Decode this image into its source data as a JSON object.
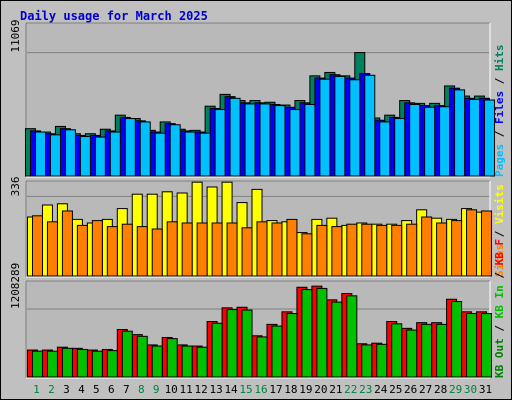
{
  "title": "Daily usage for March 2025",
  "chart_data": [
    {
      "type": "bar",
      "title": "Daily usage for March 2025",
      "categories": [
        "1",
        "2",
        "3",
        "4",
        "5",
        "6",
        "7",
        "8",
        "9",
        "10",
        "11",
        "12",
        "13",
        "14",
        "15",
        "16",
        "17",
        "18",
        "19",
        "20",
        "21",
        "22",
        "23",
        "24",
        "25",
        "26",
        "27",
        "28",
        "29",
        "30",
        "31"
      ],
      "weekend_days": [
        "1",
        "2",
        "8",
        "9",
        "15",
        "16",
        "22",
        "23",
        "29",
        "30"
      ],
      "y_tick_label": "11069",
      "ylim": [
        0,
        13700
      ],
      "series": [
        {
          "name": "Hits",
          "color": "#00805c",
          "values": [
            4300,
            4000,
            4500,
            3850,
            3850,
            4250,
            5500,
            5200,
            4150,
            4900,
            4250,
            4150,
            6300,
            7350,
            6800,
            6800,
            6650,
            6400,
            6800,
            9000,
            9300,
            9000,
            11069,
            5250,
            5500,
            6800,
            6550,
            6550,
            8100,
            7200,
            7200
          ]
        },
        {
          "name": "Files",
          "color": "#0000ff",
          "values": [
            4100,
            3850,
            4300,
            3700,
            3700,
            4100,
            5300,
            5000,
            4000,
            4750,
            4100,
            4000,
            6100,
            7150,
            6600,
            6600,
            6450,
            6200,
            6600,
            8800,
            9100,
            8800,
            9200,
            5050,
            5300,
            6600,
            6350,
            6350,
            7900,
            7000,
            7000
          ]
        },
        {
          "name": "Pages",
          "color": "#00c0ff",
          "values": [
            4000,
            3750,
            4200,
            3600,
            3550,
            4000,
            5200,
            4900,
            3900,
            4650,
            4000,
            3900,
            6000,
            7000,
            6500,
            6500,
            6350,
            6000,
            6450,
            8700,
            8950,
            8650,
            9050,
            4900,
            5200,
            6450,
            6200,
            6250,
            7750,
            6900,
            6850
          ]
        }
      ]
    },
    {
      "type": "bar",
      "categories": [
        "1",
        "2",
        "3",
        "4",
        "5",
        "6",
        "7",
        "8",
        "9",
        "10",
        "11",
        "12",
        "13",
        "14",
        "15",
        "16",
        "17",
        "18",
        "19",
        "20",
        "21",
        "22",
        "23",
        "24",
        "25",
        "26",
        "27",
        "28",
        "29",
        "30",
        "31"
      ],
      "y_tick_label": "336",
      "ylim": [
        0,
        400
      ],
      "series": [
        {
          "name": "Visits",
          "color": "#ffff00",
          "values": [
            250,
            300,
            305,
            240,
            225,
            240,
            285,
            345,
            345,
            355,
            350,
            395,
            375,
            395,
            310,
            365,
            235,
            230,
            185,
            240,
            245,
            215,
            225,
            220,
            220,
            235,
            280,
            245,
            240,
            285,
            270
          ]
        },
        {
          "name": "Sites",
          "color": "#ff8000",
          "values": [
            255,
            230,
            275,
            215,
            235,
            210,
            220,
            210,
            200,
            230,
            225,
            225,
            225,
            225,
            205,
            230,
            225,
            240,
            180,
            215,
            210,
            220,
            220,
            215,
            215,
            220,
            250,
            225,
            235,
            280,
            275
          ]
        }
      ]
    },
    {
      "type": "bar",
      "categories": [
        "1",
        "2",
        "3",
        "4",
        "5",
        "6",
        "7",
        "8",
        "9",
        "10",
        "11",
        "12",
        "13",
        "14",
        "15",
        "16",
        "17",
        "18",
        "19",
        "20",
        "21",
        "22",
        "23",
        "24",
        "25",
        "26",
        "27",
        "28",
        "29",
        "30",
        "31"
      ],
      "y_tick_label": "1208289",
      "ylim": [
        0,
        1700000
      ],
      "series": [
        {
          "name": "KB F",
          "color": "#ff0000",
          "values": [
            490000,
            490000,
            540000,
            520000,
            490000,
            500000,
            850000,
            760000,
            580000,
            710000,
            580000,
            560000,
            990000,
            1230000,
            1240000,
            740000,
            940000,
            1160000,
            1590000,
            1610000,
            1370000,
            1480000,
            600000,
            610000,
            990000,
            870000,
            970000,
            970000,
            1380000,
            1160000,
            1160000
          ]
        },
        {
          "name": "KB In",
          "color": "#00c000",
          "values": [
            470000,
            470000,
            520000,
            500000,
            470000,
            480000,
            820000,
            730000,
            560000,
            690000,
            560000,
            540000,
            960000,
            1200000,
            1190000,
            720000,
            910000,
            1130000,
            1550000,
            1570000,
            1330000,
            1440000,
            580000,
            590000,
            950000,
            840000,
            940000,
            940000,
            1340000,
            1130000,
            1130000
          ]
        },
        {
          "name": "KB Out",
          "color": "#008000",
          "values": [
            0,
            0,
            0,
            0,
            0,
            0,
            0,
            0,
            0,
            0,
            0,
            0,
            0,
            0,
            0,
            0,
            0,
            0,
            0,
            0,
            0,
            0,
            0,
            0,
            0,
            0,
            0,
            0,
            0,
            0,
            0
          ]
        }
      ]
    }
  ]
}
